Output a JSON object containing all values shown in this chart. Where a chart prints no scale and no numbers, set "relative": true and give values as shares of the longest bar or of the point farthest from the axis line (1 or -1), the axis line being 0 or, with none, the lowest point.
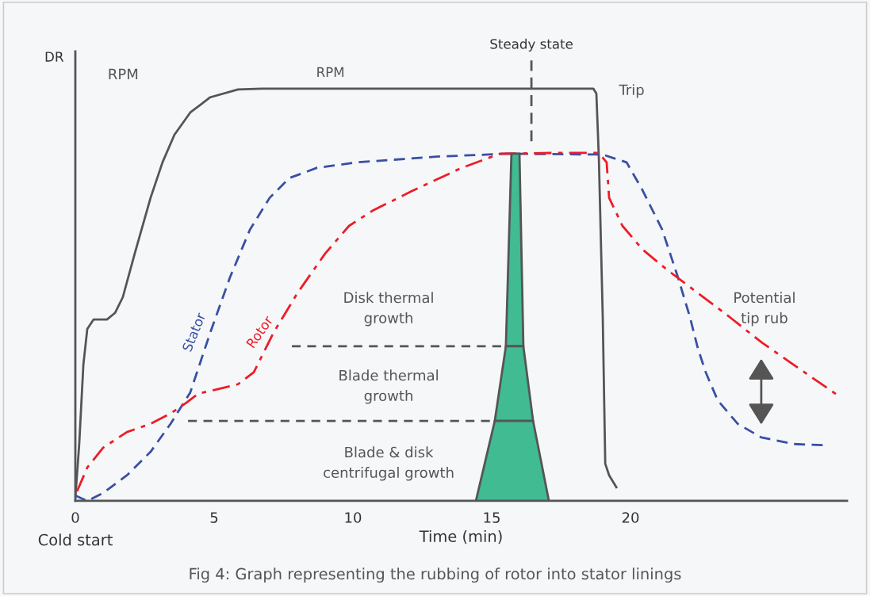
{
  "chart_data": {
    "type": "line",
    "relative": true,
    "xlabel": "Time (min)",
    "ylabel": "DR",
    "xlim": [
      0,
      27.8
    ],
    "xticks": [
      0,
      5,
      10,
      15,
      20
    ],
    "grid": false,
    "legend": false,
    "marker": "none",
    "series": [
      {
        "name": "RPM",
        "color": "#555555",
        "line_style": "solid",
        "x": [
          0,
          0.14,
          0.29,
          0.43,
          0.66,
          1.14,
          1.43,
          1.71,
          2.14,
          2.71,
          3.14,
          3.57,
          4.14,
          4.86,
          5.86,
          6.71,
          11.57,
          18.66,
          18.77,
          18.86,
          19.0,
          19.09,
          19.23,
          19.49
        ],
        "values": [
          0.008,
          0.138,
          0.331,
          0.417,
          0.44,
          0.44,
          0.456,
          0.494,
          0.6,
          0.735,
          0.821,
          0.888,
          0.942,
          0.979,
          0.998,
          1,
          1,
          1,
          0.988,
          0.831,
          0.446,
          0.09,
          0.062,
          0.033
        ]
      },
      {
        "name": "Stator",
        "color": "#3a4fa3",
        "line_style": "dashed",
        "x": [
          0,
          0.43,
          1,
          1.86,
          2.71,
          3.43,
          4.14,
          4.86,
          5.57,
          6.29,
          7.0,
          7.71,
          8.71,
          10.14,
          13,
          15.57,
          19,
          19.86,
          20.43,
          21.14,
          21.71,
          22.14,
          22.43,
          22.71,
          23.14,
          23.86,
          24.71,
          25.86,
          27
        ],
        "values": [
          0.013,
          0,
          0.019,
          0.062,
          0.119,
          0.187,
          0.263,
          0.408,
          0.542,
          0.658,
          0.735,
          0.783,
          0.808,
          0.821,
          0.835,
          0.842,
          0.84,
          0.821,
          0.754,
          0.658,
          0.542,
          0.446,
          0.369,
          0.312,
          0.244,
          0.187,
          0.154,
          0.138,
          0.135
        ]
      },
      {
        "name": "Rotor",
        "color": "#ee1c25",
        "line_style": "dashdot",
        "x": [
          0.06,
          0.43,
          1,
          1.86,
          2.71,
          3.43,
          4,
          4.43,
          5,
          5.86,
          6.43,
          7.14,
          8,
          9,
          9.86,
          10.71,
          12.14,
          13.86,
          15.29,
          17.29,
          18.86,
          19.14,
          19.23,
          19.71,
          20.43,
          21.29,
          22.43,
          23.57,
          24.71,
          25.86,
          27.51
        ],
        "values": [
          0.023,
          0.081,
          0.129,
          0.167,
          0.187,
          0.212,
          0.238,
          0.26,
          0.269,
          0.283,
          0.312,
          0.408,
          0.504,
          0.6,
          0.667,
          0.704,
          0.752,
          0.806,
          0.842,
          0.844,
          0.844,
          0.821,
          0.735,
          0.667,
          0.61,
          0.562,
          0.504,
          0.446,
          0.385,
          0.331,
          0.254
        ]
      }
    ],
    "ref_lines": [
      {
        "axis": "x",
        "value": 16.43,
        "label": "Steady state",
        "color": "#555555",
        "line_style": "dashed"
      }
    ],
    "annotations": [
      "RPM",
      "Trip",
      "Disk thermal\ngrowth",
      "Blade thermal\ngrowth",
      "Blade & disk\ncentrifugal growth",
      "Potential\ntip rub",
      "Cold start",
      "Fig 4: Graph representing the rubbing of rotor into stator linings"
    ]
  }
}
